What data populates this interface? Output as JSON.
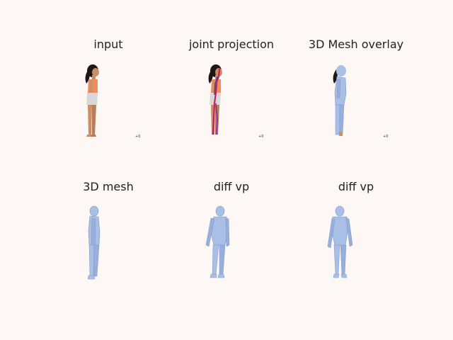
{
  "figure": {
    "panels": [
      {
        "title": "input",
        "view": "photo",
        "tick": "+0"
      },
      {
        "title": "joint projection",
        "view": "joints",
        "tick": "+0"
      },
      {
        "title": "3D Mesh overlay",
        "view": "overlay",
        "tick": "+0"
      },
      {
        "title": "3D mesh",
        "view": "mesh-side"
      },
      {
        "title": "diff vp",
        "view": "mesh-oblique"
      },
      {
        "title": "diff vp",
        "view": "mesh-front"
      }
    ]
  },
  "colors": {
    "background": "#fdf8f5",
    "mesh": "#a9bfe6",
    "mesh_shadow": "#7f97c6",
    "skin": "#c98e6a",
    "hair": "#1e1614",
    "top": "#f08c5e",
    "shorts": "#d8d8d8",
    "joint_line": "#c2185b",
    "joint_line_alt": "#3949ab"
  }
}
